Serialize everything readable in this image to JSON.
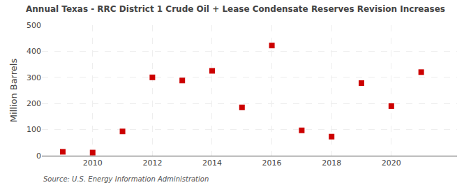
{
  "chart_data": {
    "type": "scatter",
    "title": "Annual Texas - RRC District 1 Crude Oil + Lease Condensate Reserves Revision Increases",
    "ylabel": "Million Barrels",
    "annotations": [
      "Source: U.S. Energy Information Administration"
    ],
    "x": [
      2009,
      2010,
      2011,
      2012,
      2013,
      2014,
      2015,
      2016,
      2017,
      2018,
      2019,
      2020,
      2021
    ],
    "values": [
      15,
      12,
      93,
      300,
      288,
      325,
      185,
      422,
      97,
      73,
      278,
      190,
      320
    ],
    "color": "#cc0000",
    "marker": "square",
    "xlim": [
      2008.3,
      2022.2
    ],
    "xticks": [
      2010,
      2012,
      2014,
      2016,
      2018,
      2020
    ],
    "ylim": [
      0,
      500
    ],
    "yticks": [
      0,
      100,
      200,
      300,
      400,
      500
    ],
    "grid": true
  }
}
